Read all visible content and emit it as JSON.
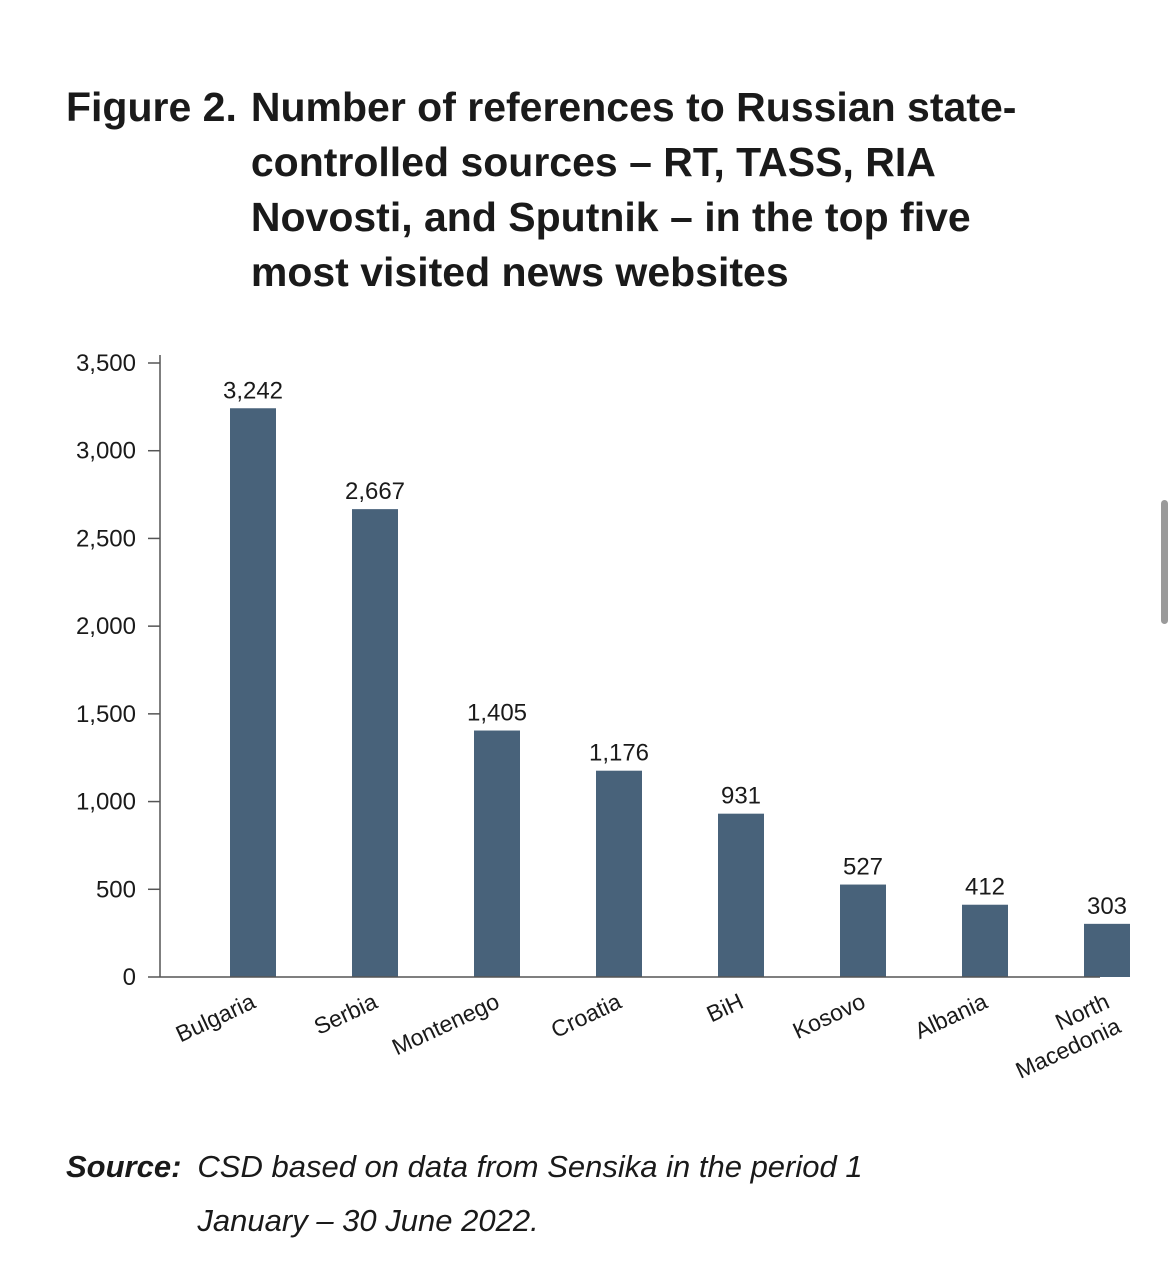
{
  "figure": {
    "prefix": "Figure 2.",
    "title": "Number of references to Russian state-controlled sources – RT, TASS, RIA Novosti, and Sputnik – in the top five most visited news websites"
  },
  "source": {
    "label": "Source:",
    "text": "CSD based on data from Sensika in the period 1 January – 30 June 2022."
  },
  "chart_data": {
    "type": "bar",
    "title": "Number of references to Russian state-controlled sources – RT, TASS, RIA Novosti, and Sputnik – in the top five most visited news websites",
    "categories": [
      "Bulgaria",
      "Serbia",
      "Montenego",
      "Croatia",
      "BiH",
      "Kosovo",
      "Albania",
      "North Macedonia"
    ],
    "category_lines": [
      [
        "Bulgaria"
      ],
      [
        "Serbia"
      ],
      [
        "Montenego"
      ],
      [
        "Croatia"
      ],
      [
        "BiH"
      ],
      [
        "Kosovo"
      ],
      [
        "Albania"
      ],
      [
        "North",
        "Macedonia"
      ]
    ],
    "values": [
      3242,
      2667,
      1405,
      1176,
      931,
      527,
      412,
      303
    ],
    "value_labels": [
      "3,242",
      "2,667",
      "1,405",
      "1,176",
      "931",
      "527",
      "412",
      "303"
    ],
    "ylim": [
      0,
      3500
    ],
    "yticks": [
      0,
      500,
      1000,
      1500,
      2000,
      2500,
      3000,
      3500
    ],
    "ytick_labels": [
      "0",
      "500",
      "1,000",
      "1,500",
      "2,000",
      "2,500",
      "3,000",
      "3,500"
    ],
    "xlabel": "",
    "ylabel": "",
    "bar_color": "#48627a",
    "grid": false
  }
}
